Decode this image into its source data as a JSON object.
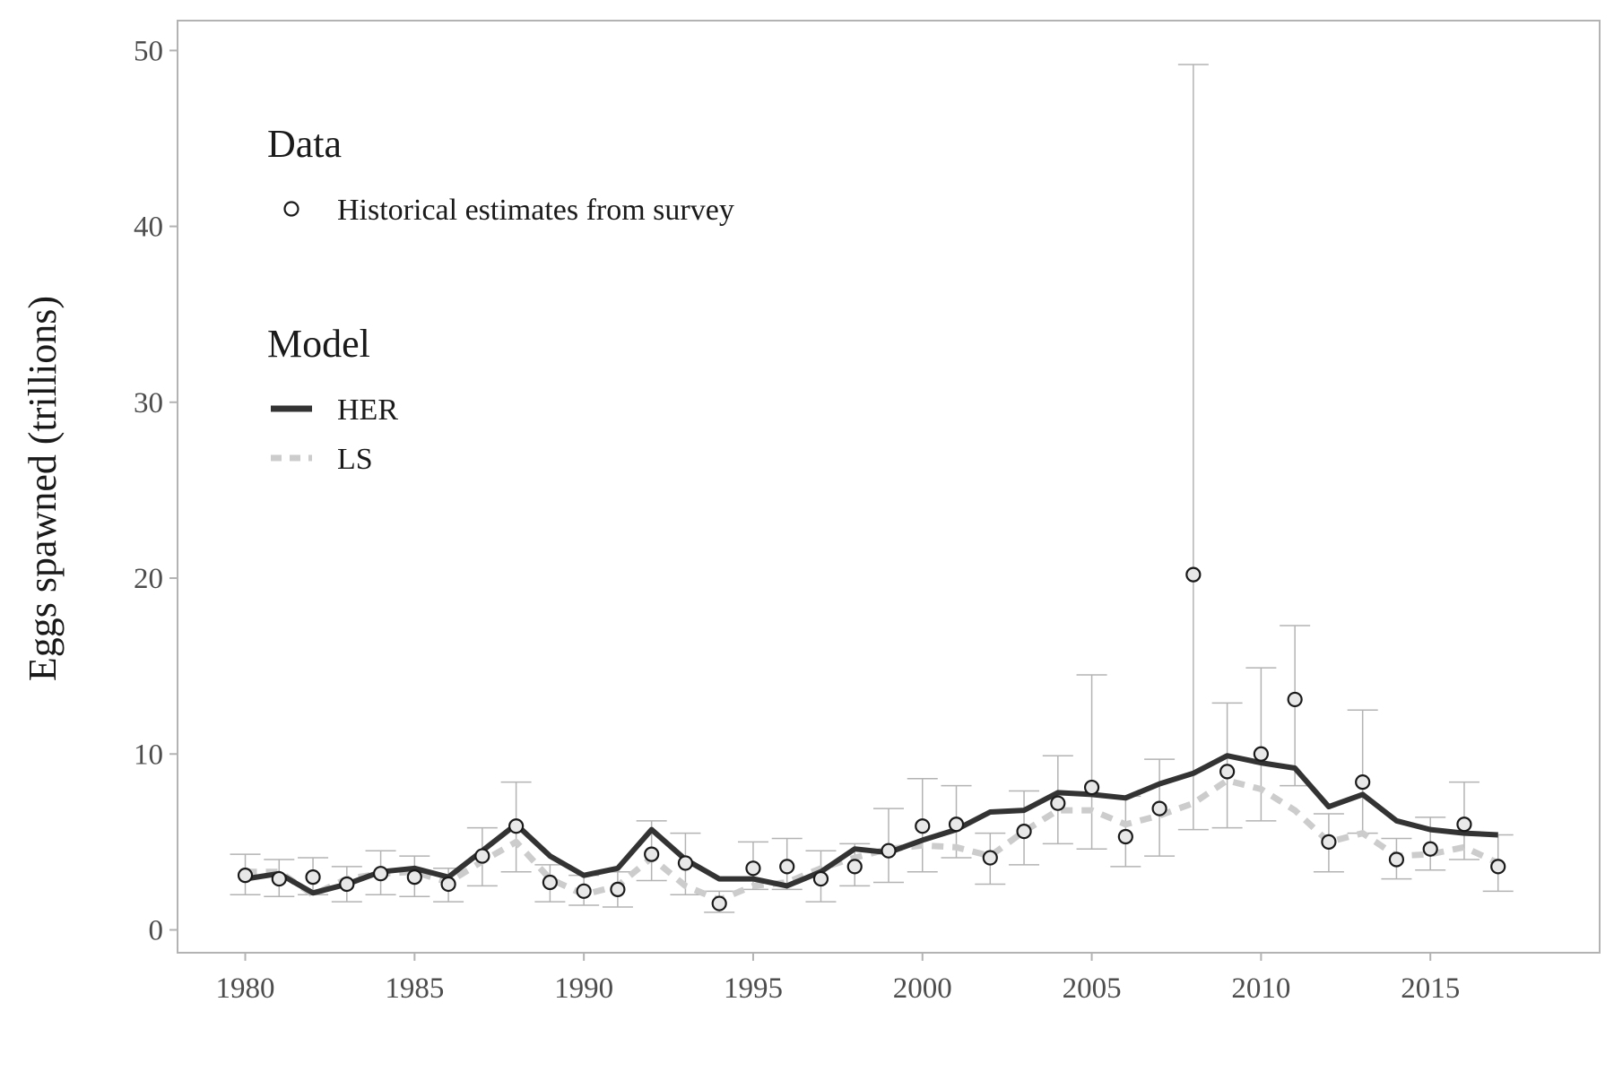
{
  "chart_data": {
    "type": "line",
    "title": "",
    "xlabel": "",
    "ylabel": "Eggs spawned (trillions)",
    "xlim": [
      1978,
      2020
    ],
    "ylim": [
      -1.3,
      51.7
    ],
    "x_ticks": [
      1980,
      1985,
      1990,
      1995,
      2000,
      2005,
      2010,
      2015
    ],
    "y_ticks": [
      0,
      10,
      20,
      30,
      40,
      50
    ],
    "grid": false,
    "legend_placement": "top-left",
    "legend": {
      "data_title": "Data",
      "data_entries": [
        {
          "label": "Historical estimates from survey",
          "marker": "open-circle"
        }
      ],
      "model_title": "Model",
      "model_entries": [
        {
          "label": "HER",
          "style": "solid",
          "color": "#333333"
        },
        {
          "label": "LS",
          "style": "dashed",
          "color": "#cccccc"
        }
      ]
    },
    "years": [
      1980,
      1981,
      1982,
      1983,
      1984,
      1985,
      1986,
      1987,
      1988,
      1989,
      1990,
      1991,
      1992,
      1993,
      1994,
      1995,
      1996,
      1997,
      1998,
      1999,
      2000,
      2001,
      2002,
      2003,
      2004,
      2005,
      2006,
      2007,
      2008,
      2009,
      2010,
      2011,
      2012,
      2013,
      2014,
      2015,
      2016,
      2017
    ],
    "survey_estimates": [
      3.1,
      2.9,
      3.0,
      2.6,
      3.2,
      3.0,
      2.6,
      4.2,
      5.9,
      2.7,
      2.2,
      2.3,
      4.3,
      3.8,
      1.5,
      3.5,
      3.6,
      2.9,
      3.6,
      4.5,
      5.9,
      6.0,
      4.1,
      5.6,
      7.2,
      8.1,
      5.3,
      6.9,
      20.2,
      9.0,
      10.0,
      13.1,
      5.0,
      8.4,
      4.0,
      4.6,
      6.0,
      3.6
    ],
    "error_bars": {
      "lower": [
        2.0,
        1.9,
        2.0,
        1.6,
        2.0,
        1.9,
        1.6,
        2.5,
        3.3,
        1.6,
        1.4,
        1.3,
        2.8,
        2.0,
        1.0,
        2.3,
        2.3,
        1.6,
        2.5,
        2.7,
        3.3,
        4.1,
        2.6,
        3.7,
        4.9,
        4.6,
        3.6,
        4.2,
        5.7,
        5.8,
        6.2,
        8.2,
        3.3,
        5.5,
        2.9,
        3.4,
        4.0,
        2.2
      ],
      "upper": [
        4.3,
        4.0,
        4.1,
        3.6,
        4.5,
        4.2,
        3.5,
        5.8,
        8.4,
        3.7,
        3.1,
        3.3,
        6.2,
        5.5,
        2.2,
        5.0,
        5.2,
        4.5,
        4.9,
        6.9,
        8.6,
        8.2,
        5.5,
        7.9,
        9.9,
        14.5,
        7.6,
        9.7,
        49.2,
        12.9,
        14.9,
        17.3,
        6.6,
        12.5,
        5.2,
        6.4,
        8.4,
        5.4
      ]
    },
    "series": [
      {
        "name": "HER",
        "values": [
          2.9,
          3.2,
          2.1,
          2.6,
          3.3,
          3.5,
          3.0,
          4.5,
          6.0,
          4.2,
          3.1,
          3.5,
          5.7,
          4.0,
          2.9,
          2.9,
          2.5,
          3.3,
          4.6,
          4.4,
          5.1,
          5.7,
          6.7,
          6.8,
          7.8,
          7.7,
          7.5,
          8.3,
          8.9,
          9.9,
          9.5,
          9.2,
          7.0,
          7.7,
          6.2,
          5.7,
          5.5,
          5.4
        ]
      },
      {
        "name": "LS",
        "values": [
          3.3,
          3.3,
          2.0,
          2.9,
          3.2,
          3.3,
          2.7,
          3.9,
          5.0,
          2.9,
          2.0,
          2.5,
          4.1,
          2.5,
          1.7,
          2.5,
          2.7,
          3.5,
          4.1,
          4.6,
          4.8,
          4.7,
          4.2,
          5.6,
          6.8,
          6.8,
          6.0,
          6.5,
          7.2,
          8.5,
          8.0,
          6.8,
          5.0,
          5.5,
          4.2,
          4.3,
          4.7,
          3.8
        ]
      }
    ],
    "colors": {
      "her_line": "#333333",
      "ls_line": "#cccccc",
      "error_bar": "#b3b3b3",
      "axis": "#b3b3b3",
      "marker_stroke": "#1a1a1a",
      "marker_fill": "#e8e8e8"
    }
  }
}
